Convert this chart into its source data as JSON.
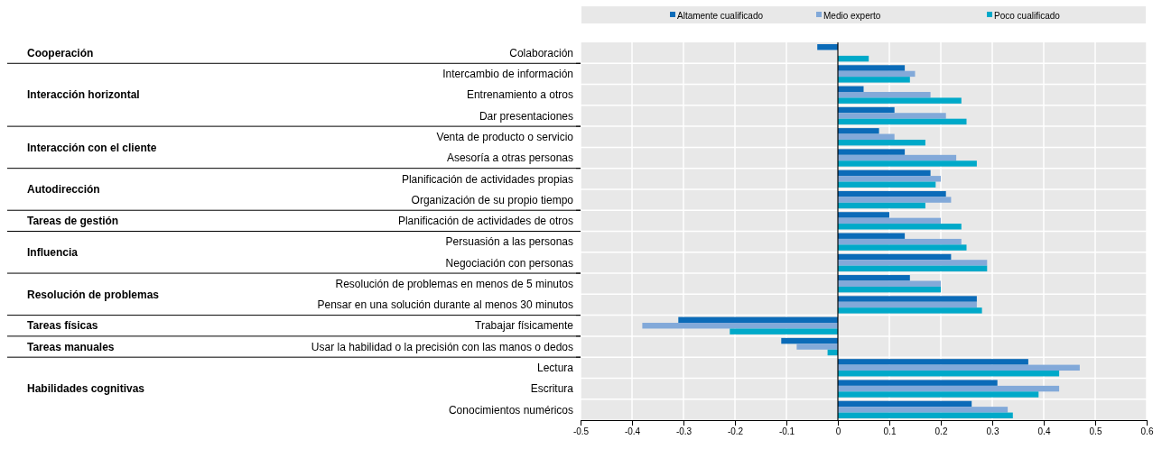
{
  "chart_data": {
    "type": "bar",
    "orientation": "horizontal",
    "categories": [
      "Colaboración",
      "Intercambio de información",
      "Entrenamiento a otros",
      "Dar presentaciones",
      "Venta de producto o servicio",
      "Asesoría a otras personas",
      "Planificación de actividades propias",
      "Organización de su propio tiempo",
      "Planificación de actividades de otros",
      "Persuasión a las personas",
      "Negociación con personas",
      "Resolución de problemas en menos de 5 minutos",
      "Pensar en una solución durante al menos 30 minutos",
      "Trabajar físicamente",
      "Usar la habilidad o la precisión con las manos o dedos",
      "Lectura",
      "Escritura",
      "Conocimientos numéricos"
    ],
    "series": [
      {
        "name": "Altamente cualificado",
        "color": "#0b6bb8",
        "values": [
          -0.04,
          0.13,
          0.05,
          0.11,
          0.08,
          0.13,
          0.18,
          0.21,
          0.1,
          0.13,
          0.22,
          0.14,
          0.27,
          -0.31,
          -0.11,
          0.37,
          0.31,
          0.26
        ]
      },
      {
        "name": "Medio experto",
        "color": "#82a9d9",
        "values": [
          0,
          0.15,
          0.18,
          0.21,
          0.11,
          0.23,
          0.2,
          0.22,
          0.2,
          0.24,
          0.29,
          0.2,
          0.27,
          -0.38,
          -0.08,
          0.47,
          0.43,
          0.33
        ]
      },
      {
        "name": "Poco cualificado",
        "color": "#00a9c9",
        "values": [
          0.06,
          0.14,
          0.24,
          0.25,
          0.17,
          0.27,
          0.19,
          0.17,
          0.24,
          0.25,
          0.29,
          0.2,
          0.28,
          -0.21,
          -0.02,
          0.43,
          0.39,
          0.34
        ]
      }
    ],
    "xlim": [
      -0.5,
      0.6
    ],
    "xticks": [
      -0.5,
      -0.4,
      -0.3,
      -0.2,
      -0.1,
      0,
      0.1,
      0.2,
      0.3,
      0.4,
      0.5,
      0.6
    ],
    "grid": true,
    "legend": "top",
    "annotations": [
      "Cooperación",
      "Interacción horizontal",
      "Interacción con el cliente",
      "Autodirección",
      "Tareas de gestión",
      "Influencia",
      "Resolución de problemas",
      "Tareas físicas",
      "Tareas manuales",
      "Habilidades cognitivas"
    ]
  }
}
